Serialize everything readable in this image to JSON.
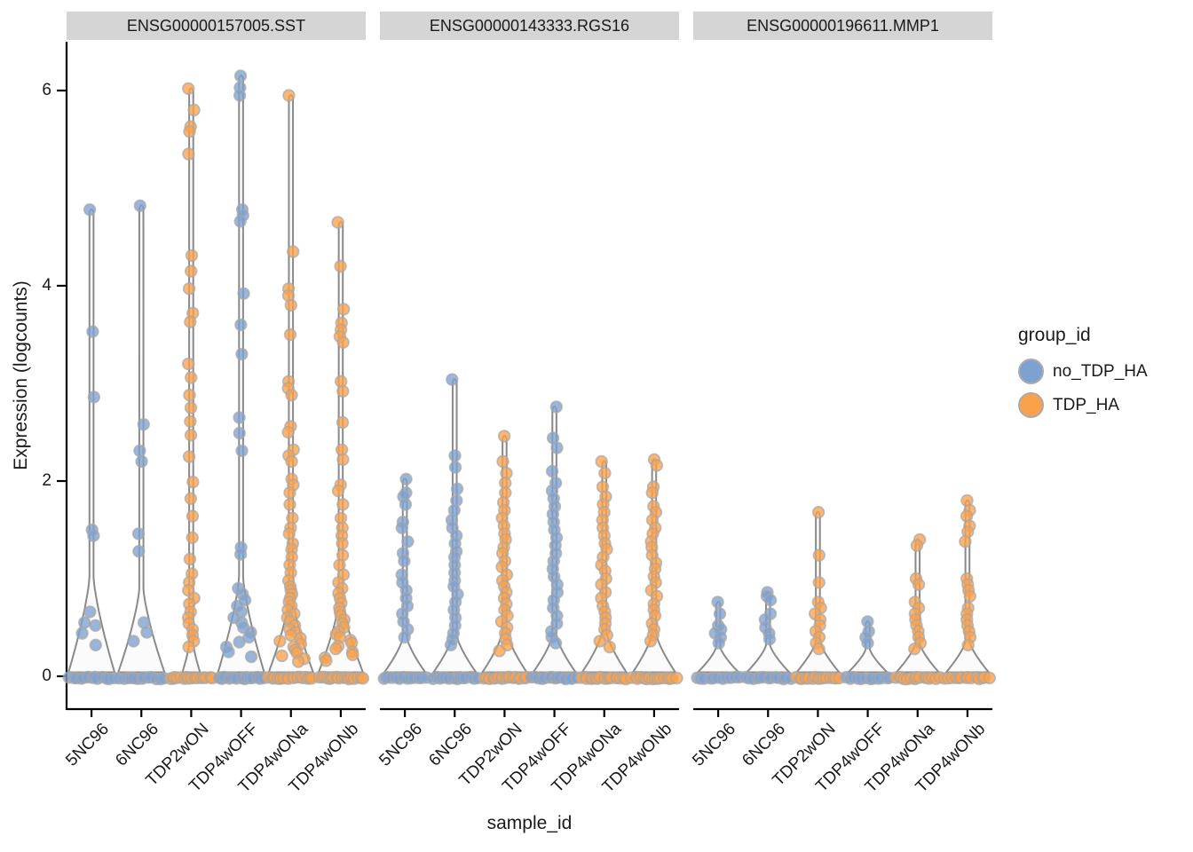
{
  "axes": {
    "y_title": "Expression (logcounts)",
    "x_title": "sample_id",
    "y_ticks": [
      "0",
      "2",
      "4",
      "6"
    ]
  },
  "legend": {
    "title": "group_id",
    "items": [
      {
        "label": "no_TDP_HA",
        "group": "no_TDP_HA"
      },
      {
        "label": "TDP_HA",
        "group": "TDP_HA"
      }
    ]
  },
  "chart_data": {
    "type": "violin+jitter",
    "xlabel": "sample_id",
    "ylabel": "Expression (logcounts)",
    "ylim": [
      -0.36,
      6.45
    ],
    "y_tick_values": [
      0,
      2,
      4,
      6
    ],
    "grid": false,
    "legend_position": "right",
    "categories": [
      "5NC96",
      "6NC96",
      "TDP2wON",
      "TDP4wOFF",
      "TDP4wONa",
      "TDP4wONb"
    ],
    "groups_per_category": [
      "no_TDP_HA",
      "no_TDP_HA",
      "TDP_HA",
      "no_TDP_HA",
      "TDP_HA",
      "TDP_HA"
    ],
    "colors": {
      "no_TDP_HA": "#7da2d1",
      "TDP_HA": "#fba14c"
    },
    "point_stroke": "#a6a6a6",
    "violin_stroke": "#8a8a8a",
    "violin_fill": "#fbfbfb",
    "strip_bg": "#d5d5d5",
    "facets": [
      {
        "title": "ENSG00000157005.SST",
        "violins": [
          {
            "sample": "5NC96",
            "group": "no_TDP_HA",
            "base_halfwidth": 26,
            "knee": 1.02,
            "zeros": 13,
            "points": [
              4.78,
              3.53,
              2.86,
              1.5,
              1.44,
              0.66,
              0.55,
              0.52,
              0.44,
              0.32
            ]
          },
          {
            "sample": "6NC96",
            "group": "no_TDP_HA",
            "base_halfwidth": 26,
            "knee": 0.9,
            "zeros": 13,
            "points": [
              4.82,
              2.58,
              2.31,
              2.2,
              1.46,
              1.28,
              0.55,
              0.45,
              0.36
            ]
          },
          {
            "sample": "TDP2wON",
            "group": "TDP_HA",
            "base_halfwidth": 10,
            "knee": 0.34,
            "zeros": 16,
            "points": [
              6.02,
              5.8,
              5.63,
              5.58,
              5.35,
              4.31,
              4.15,
              3.97,
              3.72,
              3.63,
              3.2,
              3.06,
              2.88,
              2.75,
              2.61,
              2.47,
              2.25,
              1.99,
              1.82,
              1.64,
              1.42,
              1.2,
              1.05,
              0.96,
              0.88,
              0.8,
              0.74,
              0.66,
              0.6,
              0.54,
              0.48,
              0.42,
              0.36,
              0.3
            ]
          },
          {
            "sample": "TDP4wOFF",
            "group": "no_TDP_HA",
            "base_halfwidth": 26,
            "knee": 1.02,
            "zeros": 15,
            "points": [
              6.15,
              6.03,
              5.95,
              4.78,
              4.72,
              4.66,
              3.92,
              3.6,
              3.3,
              2.65,
              2.49,
              2.31,
              1.32,
              1.25,
              0.9,
              0.84,
              0.78,
              0.72,
              0.66,
              0.6,
              0.55,
              0.5,
              0.45,
              0.4,
              0.35,
              0.3,
              0.25,
              0.2
            ]
          },
          {
            "sample": "TDP4wONa",
            "group": "TDP_HA",
            "base_halfwidth": 25,
            "knee": 0.8,
            "zeros": 18,
            "points": [
              5.95,
              4.35,
              3.97,
              3.9,
              3.8,
              3.5,
              3.02,
              2.95,
              2.88,
              2.56,
              2.5,
              2.32,
              2.26,
              2.2,
              2.02,
              1.96,
              1.88,
              1.76,
              1.62,
              1.52,
              1.46,
              1.36,
              1.3,
              1.22,
              1.14,
              1.06,
              0.98,
              0.92,
              0.88,
              0.84,
              0.8,
              0.76,
              0.72,
              0.68,
              0.64,
              0.6,
              0.56,
              0.52,
              0.48,
              0.45,
              0.42,
              0.39,
              0.36,
              0.33,
              0.3,
              0.27,
              0.24,
              0.21,
              0.18,
              0.15
            ]
          },
          {
            "sample": "TDP4wONb",
            "group": "TDP_HA",
            "base_halfwidth": 25,
            "knee": 0.76,
            "zeros": 18,
            "points": [
              4.65,
              4.2,
              3.76,
              3.62,
              3.55,
              3.48,
              3.42,
              3.02,
              2.92,
              2.6,
              2.32,
              2.22,
              1.96,
              1.9,
              1.76,
              1.62,
              1.52,
              1.44,
              1.36,
              1.24,
              1.14,
              1.04,
              0.96,
              0.9,
              0.85,
              0.8,
              0.75,
              0.7,
              0.66,
              0.62,
              0.58,
              0.54,
              0.5,
              0.46,
              0.43,
              0.4,
              0.37,
              0.34,
              0.31,
              0.28,
              0.25,
              0.22,
              0.19,
              0.16
            ]
          }
        ]
      },
      {
        "title": "ENSG00000143333.RGS16",
        "violins": [
          {
            "sample": "5NC96",
            "group": "no_TDP_HA",
            "base_halfwidth": 23,
            "knee": 0.4,
            "zeros": 12,
            "points": [
              2.02,
              1.88,
              1.84,
              1.76,
              1.58,
              1.52,
              1.38,
              1.26,
              1.18,
              1.04,
              0.96,
              0.88,
              0.8,
              0.72,
              0.64,
              0.56,
              0.48,
              0.4
            ]
          },
          {
            "sample": "6NC96",
            "group": "no_TDP_HA",
            "base_halfwidth": 24,
            "knee": 0.42,
            "zeros": 14,
            "points": [
              3.04,
              2.26,
              2.14,
              1.92,
              1.8,
              1.7,
              1.6,
              1.52,
              1.44,
              1.36,
              1.28,
              1.22,
              1.14,
              1.06,
              0.98,
              0.92,
              0.84,
              0.76,
              0.68,
              0.6,
              0.52,
              0.44,
              0.38,
              0.32
            ]
          },
          {
            "sample": "TDP2wON",
            "group": "TDP_HA",
            "base_halfwidth": 25,
            "knee": 0.46,
            "zeros": 18,
            "points": [
              2.46,
              2.2,
              2.08,
              1.98,
              1.88,
              1.78,
              1.7,
              1.62,
              1.54,
              1.46,
              1.4,
              1.32,
              1.26,
              1.18,
              1.12,
              1.04,
              0.98,
              0.92,
              0.86,
              0.8,
              0.74,
              0.68,
              0.62,
              0.56,
              0.5,
              0.44,
              0.38,
              0.32,
              0.26
            ]
          },
          {
            "sample": "TDP4wOFF",
            "group": "no_TDP_HA",
            "base_halfwidth": 24,
            "knee": 0.42,
            "zeros": 15,
            "points": [
              2.76,
              2.44,
              2.34,
              2.1,
              1.98,
              1.9,
              1.82,
              1.74,
              1.66,
              1.58,
              1.5,
              1.42,
              1.34,
              1.26,
              1.18,
              1.1,
              1.02,
              0.94,
              0.86,
              0.78,
              0.7,
              0.62,
              0.54,
              0.46,
              0.4,
              0.34
            ]
          },
          {
            "sample": "TDP4wONa",
            "group": "TDP_HA",
            "base_halfwidth": 25,
            "knee": 0.46,
            "zeros": 17,
            "points": [
              2.2,
              2.08,
              1.94,
              1.84,
              1.76,
              1.68,
              1.6,
              1.52,
              1.44,
              1.36,
              1.3,
              1.22,
              1.14,
              1.08,
              1.0,
              0.94,
              0.86,
              0.8,
              0.72,
              0.66,
              0.6,
              0.54,
              0.48,
              0.42,
              0.36,
              0.3
            ]
          },
          {
            "sample": "TDP4wONb",
            "group": "TDP_HA",
            "base_halfwidth": 24,
            "knee": 0.44,
            "zeros": 16,
            "points": [
              2.22,
              2.16,
              1.94,
              1.88,
              1.74,
              1.68,
              1.6,
              1.52,
              1.46,
              1.38,
              1.32,
              1.24,
              1.16,
              1.1,
              1.02,
              0.96,
              0.88,
              0.82,
              0.74,
              0.68,
              0.62,
              0.54,
              0.48,
              0.42,
              0.36
            ]
          }
        ]
      },
      {
        "title": "ENSG00000196611.MMP1",
        "violins": [
          {
            "sample": "5NC96",
            "group": "no_TDP_HA",
            "base_halfwidth": 23,
            "knee": 0.3,
            "zeros": 11,
            "points": [
              0.76,
              0.64,
              0.52,
              0.48,
              0.44,
              0.4,
              0.34
            ]
          },
          {
            "sample": "6NC96",
            "group": "no_TDP_HA",
            "base_halfwidth": 24,
            "knee": 0.32,
            "zeros": 13,
            "points": [
              0.86,
              0.82,
              0.78,
              0.64,
              0.58,
              0.5,
              0.44,
              0.38
            ]
          },
          {
            "sample": "TDP2wON",
            "group": "TDP_HA",
            "base_halfwidth": 24,
            "knee": 0.36,
            "zeros": 15,
            "points": [
              1.68,
              1.24,
              0.96,
              0.76,
              0.7,
              0.64,
              0.58,
              0.52,
              0.46,
              0.4,
              0.34,
              0.28
            ]
          },
          {
            "sample": "TDP4wOFF",
            "group": "no_TDP_HA",
            "base_halfwidth": 22,
            "knee": 0.28,
            "zeros": 12,
            "points": [
              0.56,
              0.46,
              0.4,
              0.34
            ]
          },
          {
            "sample": "TDP4wONa",
            "group": "TDP_HA",
            "base_halfwidth": 24,
            "knee": 0.34,
            "zeros": 15,
            "points": [
              1.4,
              1.34,
              1.0,
              0.94,
              0.76,
              0.7,
              0.64,
              0.58,
              0.52,
              0.46,
              0.4,
              0.34,
              0.28
            ]
          },
          {
            "sample": "TDP4wONb",
            "group": "TDP_HA",
            "base_halfwidth": 24,
            "knee": 0.36,
            "zeros": 14,
            "points": [
              1.8,
              1.7,
              1.64,
              1.54,
              1.48,
              1.38,
              1.0,
              0.94,
              0.88,
              0.82,
              0.7,
              0.64,
              0.58,
              0.52,
              0.46,
              0.4,
              0.32
            ]
          }
        ]
      }
    ]
  }
}
